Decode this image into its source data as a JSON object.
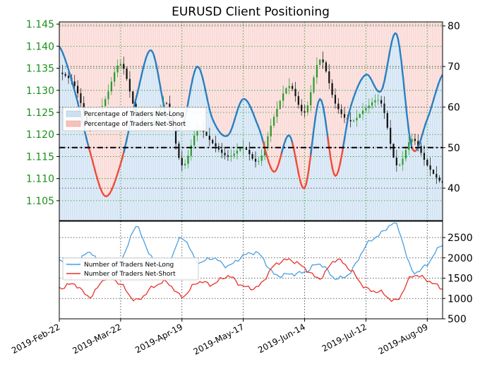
{
  "chart_data": [
    {
      "type": "line",
      "panel": "top",
      "title": "EURUSD Client Positioning",
      "x": [
        "2019-Feb-22",
        "2019-Mar-01",
        "2019-Mar-08",
        "2019-Mar-15",
        "2019-Mar-22",
        "2019-Mar-29",
        "2019-Apr-05",
        "2019-Apr-12",
        "2019-Apr-19",
        "2019-Apr-26",
        "2019-May-03",
        "2019-May-10",
        "2019-May-17",
        "2019-May-24",
        "2019-May-31",
        "2019-Jun-07",
        "2019-Jun-14",
        "2019-Jun-21",
        "2019-Jun-28",
        "2019-Jul-05",
        "2019-Jul-12",
        "2019-Jul-19",
        "2019-Jul-26",
        "2019-Aug-02",
        "2019-Aug-09",
        "2019-Aug-16"
      ],
      "x_tick_labels": [
        "2019-Feb-22",
        "2019-Mar-22",
        "2019-Apr-19",
        "2019-May-17",
        "2019-Jun-14",
        "2019-Jul-12",
        "2019-Aug-09"
      ],
      "left_axis": {
        "ticks": [
          "1.105",
          "1.110",
          "1.115",
          "1.120",
          "1.125",
          "1.130",
          "1.135",
          "1.140",
          "1.145"
        ],
        "ylim": [
          1.1005,
          1.1455
        ],
        "tick_color": "#1a8f1a"
      },
      "right_axis": {
        "ticks": [
          "40",
          "50",
          "60",
          "70",
          "80"
        ],
        "ylim": [
          32,
          81
        ]
      },
      "reference_line": 50,
      "series": [
        {
          "name": "Percentage of Traders Net-Long",
          "axis": "right",
          "color_above": "#2a7fc1",
          "color_below": "#f04a3a",
          "values": [
            75,
            64,
            49,
            38,
            46,
            62,
            74,
            58,
            55,
            70,
            57,
            53,
            62,
            55,
            44,
            53,
            40,
            62,
            43,
            60,
            68,
            64,
            78,
            50,
            57,
            68
          ]
        },
        {
          "name": "Percentage of Traders Net-Short",
          "axis": "right",
          "values": [
            25,
            36,
            51,
            62,
            54,
            38,
            26,
            42,
            45,
            30,
            43,
            47,
            38,
            45,
            56,
            47,
            60,
            38,
            57,
            40,
            32,
            36,
            22,
            50,
            43,
            32
          ]
        },
        {
          "name": "EURUSD price",
          "axis": "left",
          "type": "candlestick",
          "values": [
            1.134,
            1.131,
            1.122,
            1.128,
            1.136,
            1.125,
            1.122,
            1.127,
            1.113,
            1.121,
            1.118,
            1.115,
            1.117,
            1.114,
            1.124,
            1.131,
            1.125,
            1.137,
            1.127,
            1.123,
            1.126,
            1.127,
            1.113,
            1.119,
            1.113,
            1.109
          ]
        }
      ],
      "legend": {
        "placement": "center-left",
        "entries": [
          "Percentage of Traders Net-Long",
          "Percentage of Traders Net-Short"
        ],
        "colors": [
          "#cde0f2",
          "#f7c0bb"
        ]
      }
    },
    {
      "type": "line",
      "panel": "bottom",
      "x": [
        "2019-Feb-22",
        "2019-Mar-01",
        "2019-Mar-08",
        "2019-Mar-15",
        "2019-Mar-22",
        "2019-Mar-29",
        "2019-Apr-05",
        "2019-Apr-12",
        "2019-Apr-19",
        "2019-Apr-26",
        "2019-May-03",
        "2019-May-10",
        "2019-May-17",
        "2019-May-24",
        "2019-May-31",
        "2019-Jun-07",
        "2019-Jun-14",
        "2019-Jun-21",
        "2019-Jun-28",
        "2019-Jul-05",
        "2019-Jul-12",
        "2019-Jul-19",
        "2019-Jul-26",
        "2019-Aug-02",
        "2019-Aug-09",
        "2019-Aug-16"
      ],
      "right_axis": {
        "ticks": [
          "500",
          "1000",
          "1500",
          "2000",
          "2500"
        ],
        "ylim": [
          500,
          2900
        ]
      },
      "series": [
        {
          "name": "Number of Traders Net-Long",
          "color": "#4a9fe0",
          "values": [
            1950,
            1800,
            2150,
            1600,
            1850,
            2750,
            2000,
            1800,
            2500,
            1900,
            2000,
            1800,
            2050,
            2100,
            1600,
            1600,
            1650,
            1850,
            1500,
            1650,
            2300,
            2600,
            2800,
            1700,
            1850,
            2350
          ]
        },
        {
          "name": "Number of Traders Net-Short",
          "color": "#e8322a",
          "values": [
            1250,
            1350,
            1050,
            1500,
            1350,
            950,
            1250,
            1400,
            1050,
            1400,
            1350,
            1550,
            1300,
            1300,
            1800,
            1950,
            1750,
            1500,
            1950,
            1700,
            1250,
            1150,
            950,
            1550,
            1450,
            1250
          ]
        }
      ],
      "legend": {
        "placement": "center-left",
        "entries": [
          "Number of Traders Net-Long",
          "Number of Traders Net-Short"
        ]
      }
    }
  ]
}
